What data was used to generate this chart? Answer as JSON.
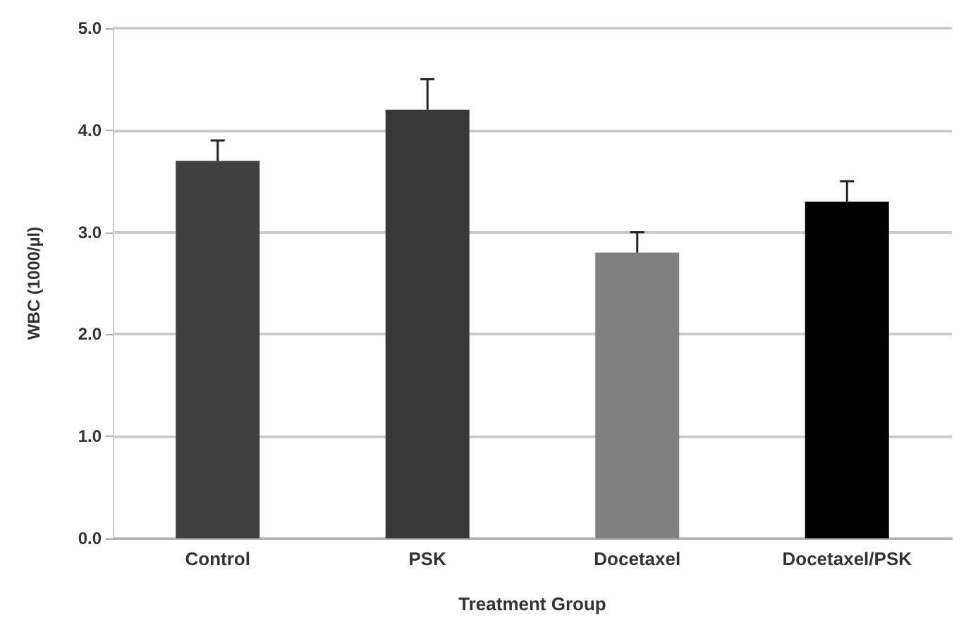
{
  "chart_data": {
    "type": "bar",
    "xlabel": "Treatment Group",
    "ylabel": "WBC (1000/µl)",
    "categories": [
      "Control",
      "PSK",
      "Docetaxel",
      "Docetaxel/PSK"
    ],
    "values": [
      3.7,
      4.2,
      2.8,
      3.3
    ],
    "colors": [
      "#404040",
      "#383838",
      "#808080",
      "#000000"
    ],
    "errors": [
      [
        3.7,
        3.9
      ],
      [
        4.2,
        4.5
      ],
      [
        2.8,
        3.0
      ],
      [
        3.3,
        3.5
      ]
    ],
    "ylim": [
      0,
      5
    ],
    "yticks": [
      {
        "value": 0,
        "label": "0.0"
      },
      {
        "value": 1,
        "label": "1.0"
      },
      {
        "value": 2,
        "label": "2.0"
      },
      {
        "value": 3,
        "label": "3.0"
      },
      {
        "value": 4,
        "label": "4.0"
      },
      {
        "value": 5,
        "label": "5.0"
      }
    ],
    "grid": "y"
  }
}
